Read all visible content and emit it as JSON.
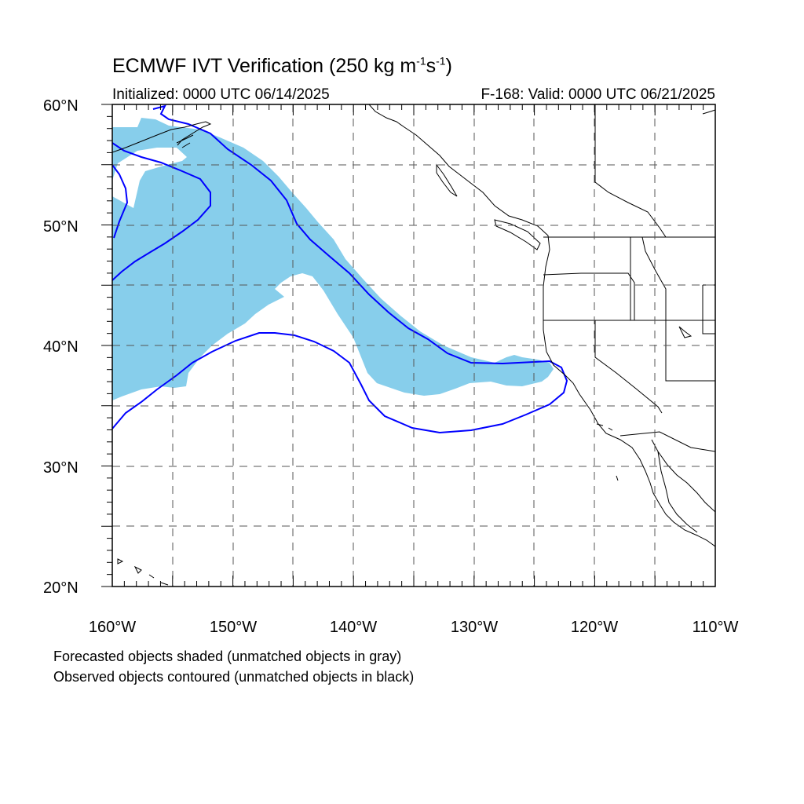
{
  "title": {
    "main": "ECMWF IVT Verification (250 kg m",
    "sup1": "-1",
    "mid": "s",
    "sup2": "-1",
    "end": ")"
  },
  "initialized": "Initialized: 0000 UTC 06/14/2025",
  "valid": "F-168: Valid: 0000 UTC 06/21/2025",
  "footnote1": "Forecasted objects shaded (unmatched objects in gray)",
  "footnote2": "Observed objects contoured (unmatched objects in black)",
  "axes": {
    "lat_labels": [
      "20°N",
      "30°N",
      "40°N",
      "50°N",
      "60°N"
    ],
    "lon_labels": [
      "160°W",
      "150°W",
      "140°W",
      "130°W",
      "120°W",
      "110°W"
    ]
  },
  "colors": {
    "forecast_fill": "#87ceeb",
    "observed_contour": "#0000ff",
    "coast": "#000000"
  }
}
